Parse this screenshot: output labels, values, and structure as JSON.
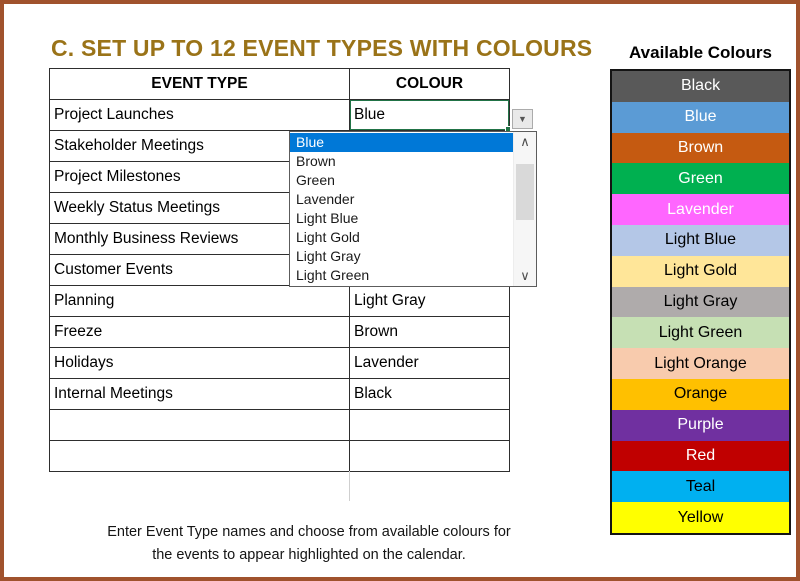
{
  "title": "C. SET UP TO 12 EVENT TYPES WITH COLOURS",
  "theme": {
    "frame_brown": "#A0522D",
    "title_gold": "#9A7318",
    "selection_green": "#217346",
    "dropdown_highlight_blue": "#0078D7"
  },
  "icons": {
    "dropdown_arrow": "▼",
    "scroll_up": "∧",
    "scroll_down": "∨"
  },
  "table": {
    "headers": [
      "EVENT TYPE",
      "COLOUR"
    ],
    "rows": [
      {
        "event": "Project Launches",
        "colour": "Blue",
        "selected": true
      },
      {
        "event": "Stakeholder Meetings",
        "colour": ""
      },
      {
        "event": "Project Milestones",
        "colour": ""
      },
      {
        "event": "Weekly Status Meetings",
        "colour": ""
      },
      {
        "event": "Monthly Business Reviews",
        "colour": ""
      },
      {
        "event": "Customer Events",
        "colour": ""
      },
      {
        "event": "Planning",
        "colour": "Light Gray"
      },
      {
        "event": "Freeze",
        "colour": "Brown"
      },
      {
        "event": "Holidays",
        "colour": "Lavender"
      },
      {
        "event": "Internal Meetings",
        "colour": "Black"
      },
      {
        "event": "",
        "colour": ""
      },
      {
        "event": "",
        "colour": ""
      }
    ]
  },
  "dropdown": {
    "selected_value": "Blue",
    "highlighted_item": "Blue",
    "items": [
      "Blue",
      "Brown",
      "Green",
      "Lavender",
      "Light Blue",
      "Light Gold",
      "Light Gray",
      "Light Green"
    ]
  },
  "available_colours": {
    "heading": "Available Colours",
    "swatches": [
      {
        "label": "Black",
        "bg": "#595959",
        "fg": "#FFFFFF"
      },
      {
        "label": "Blue",
        "bg": "#5B9BD5",
        "fg": "#FFFFFF"
      },
      {
        "label": "Brown",
        "bg": "#C55A11",
        "fg": "#FFFFFF"
      },
      {
        "label": "Green",
        "bg": "#00B050",
        "fg": "#FFFFFF"
      },
      {
        "label": "Lavender",
        "bg": "#FF66FF",
        "fg": "#FFFFFF"
      },
      {
        "label": "Light Blue",
        "bg": "#B4C7E7",
        "fg": "#000000"
      },
      {
        "label": "Light Gold",
        "bg": "#FFE699",
        "fg": "#000000"
      },
      {
        "label": "Light Gray",
        "bg": "#AFABAB",
        "fg": "#000000"
      },
      {
        "label": "Light Green",
        "bg": "#C6E0B4",
        "fg": "#000000"
      },
      {
        "label": "Light Orange",
        "bg": "#F8CBAD",
        "fg": "#000000"
      },
      {
        "label": "Orange",
        "bg": "#FFC000",
        "fg": "#000000"
      },
      {
        "label": "Purple",
        "bg": "#7030A0",
        "fg": "#FFFFFF"
      },
      {
        "label": "Red",
        "bg": "#C00000",
        "fg": "#FFFFFF"
      },
      {
        "label": "Teal",
        "bg": "#00B0F0",
        "fg": "#000000"
      },
      {
        "label": "Yellow",
        "bg": "#FFFF00",
        "fg": "#000000"
      }
    ]
  },
  "footer": {
    "line1": "Enter Event Type names and choose from available colours for",
    "line2": "the events to appear highlighted on the calendar."
  }
}
